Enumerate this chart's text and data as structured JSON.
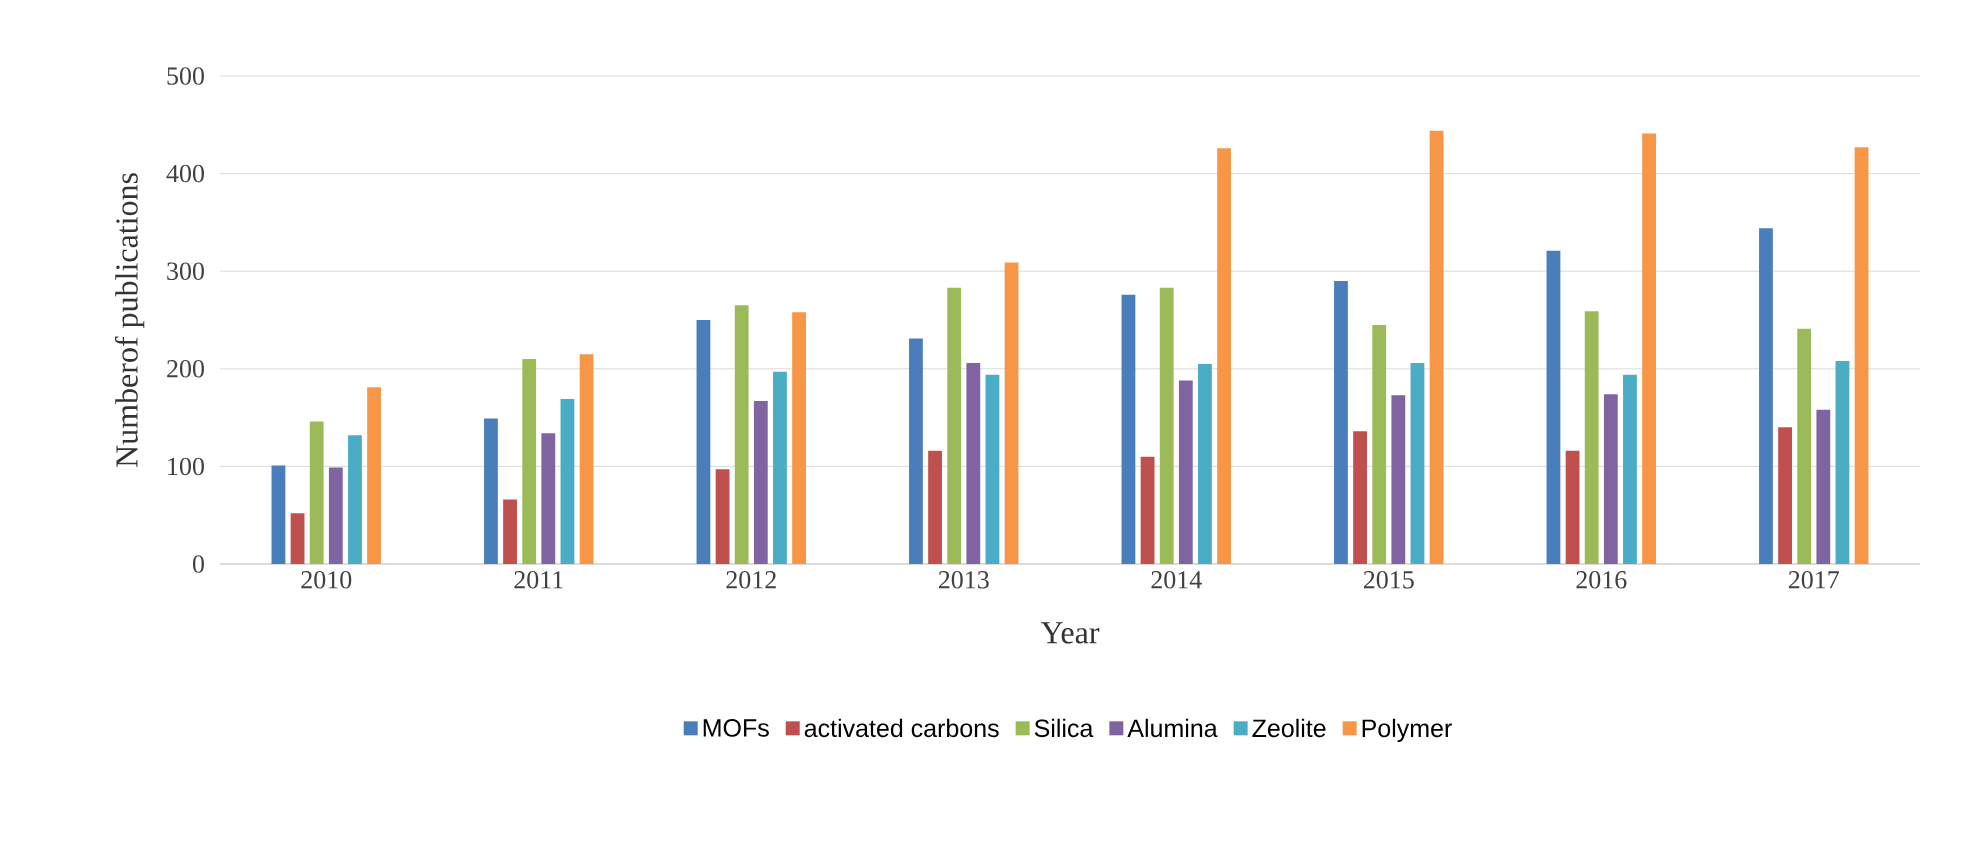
{
  "chart_data": {
    "type": "bar",
    "xlabel": "Year",
    "ylabel": "Numberof publications",
    "categories": [
      "2010",
      "2011",
      "2012",
      "2013",
      "2014",
      "2015",
      "2016",
      "2017"
    ],
    "series": [
      {
        "name": "MOFs",
        "color": "#4a7ebb",
        "values": [
          101,
          149,
          250,
          231,
          276,
          290,
          321,
          344
        ]
      },
      {
        "name": "activated carbons",
        "color": "#c0504d",
        "values": [
          52,
          66,
          97,
          116,
          110,
          136,
          116,
          140
        ]
      },
      {
        "name": "Silica",
        "color": "#9bbb59",
        "values": [
          146,
          210,
          265,
          283,
          283,
          245,
          259,
          241
        ]
      },
      {
        "name": "Alumina",
        "color": "#8064a2",
        "values": [
          99,
          134,
          167,
          206,
          188,
          173,
          174,
          158
        ]
      },
      {
        "name": "Zeolite",
        "color": "#4bacc6",
        "values": [
          132,
          169,
          197,
          194,
          205,
          206,
          194,
          208
        ]
      },
      {
        "name": "Polymer",
        "color": "#f79646",
        "values": [
          181,
          215,
          258,
          309,
          426,
          444,
          441,
          427
        ]
      }
    ],
    "ylim": [
      0,
      500
    ],
    "yticks": [
      0,
      100,
      200,
      300,
      400,
      500
    ],
    "grid": "y",
    "legend": "bottom"
  }
}
